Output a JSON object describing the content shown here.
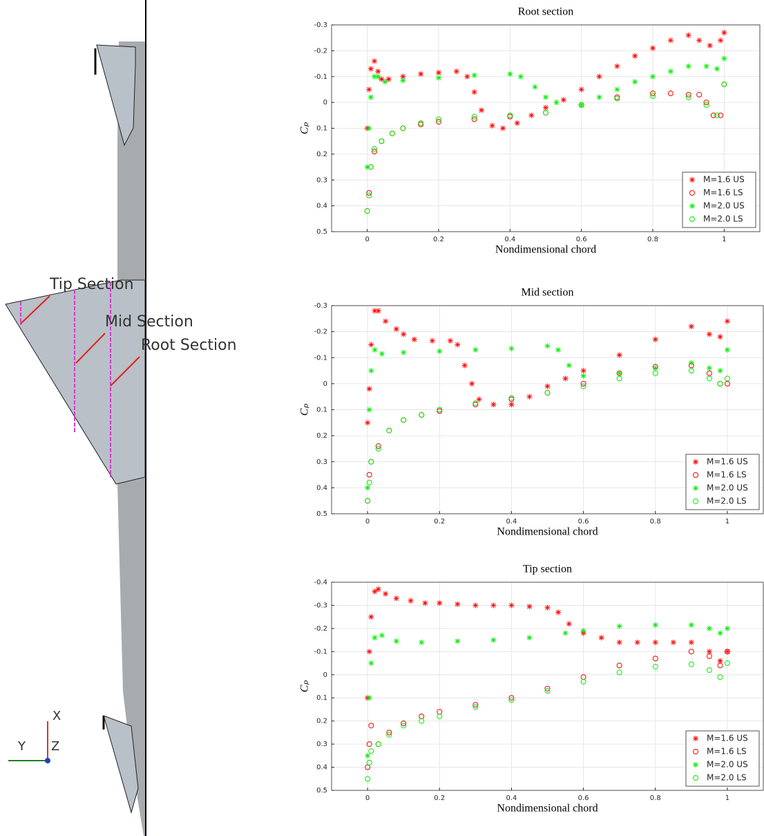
{
  "diagram": {
    "labels": [
      "Tip Section",
      "Mid Section",
      "Root Section"
    ],
    "axes": [
      "X",
      "Y",
      "Z"
    ]
  },
  "chart_data": [
    {
      "type": "scatter",
      "title": "Root section",
      "xlabel": "Nondimensional chord",
      "ylabel": "Cₚ",
      "xlim": [
        -0.1,
        1.1
      ],
      "xticks": [
        0,
        0.2,
        0.4,
        0.6,
        0.8,
        1
      ],
      "ylim": [
        -0.3,
        0.5
      ],
      "y_reversed": true,
      "yticks": [
        -0.3,
        -0.2,
        -0.1,
        0,
        0.1,
        0.2,
        0.3,
        0.4,
        0.5
      ],
      "grid": true,
      "legend_loc": "lower right",
      "series": [
        {
          "name": "M=1.6 US",
          "color": "#ff0000",
          "marker": "star",
          "x": [
            0,
            0.005,
            0.01,
            0.02,
            0.03,
            0.04,
            0.06,
            0.1,
            0.15,
            0.2,
            0.25,
            0.28,
            0.3,
            0.32,
            0.35,
            0.38,
            0.42,
            0.46,
            0.5,
            0.55,
            0.6,
            0.65,
            0.7,
            0.75,
            0.8,
            0.85,
            0.9,
            0.93,
            0.96,
            0.99,
            1.0
          ],
          "values": [
            0.1,
            -0.05,
            -0.13,
            -0.16,
            -0.12,
            -0.09,
            -0.09,
            -0.1,
            -0.11,
            -0.115,
            -0.12,
            -0.1,
            -0.04,
            0.03,
            0.09,
            0.1,
            0.08,
            0.05,
            0.02,
            -0.01,
            -0.05,
            -0.1,
            -0.14,
            -0.18,
            -0.21,
            -0.24,
            -0.26,
            -0.24,
            -0.22,
            -0.24,
            -0.27
          ]
        },
        {
          "name": "M=1.6 LS",
          "color": "#ff0000",
          "marker": "circle",
          "x": [
            0,
            0.005,
            0.01,
            0.02,
            0.04,
            0.07,
            0.1,
            0.15,
            0.2,
            0.3,
            0.4,
            0.5,
            0.6,
            0.7,
            0.8,
            0.85,
            0.9,
            0.93,
            0.95,
            0.97,
            0.99,
            1.0
          ],
          "values": [
            0.42,
            0.35,
            0.25,
            0.19,
            0.15,
            0.12,
            0.1,
            0.085,
            0.075,
            0.065,
            0.055,
            0.04,
            0.01,
            -0.02,
            -0.035,
            -0.035,
            -0.03,
            -0.03,
            0.0,
            0.05,
            0.05,
            -0.07
          ]
        },
        {
          "name": "M=2.0 US",
          "color": "#00ee00",
          "marker": "star",
          "x": [
            0,
            0.005,
            0.01,
            0.02,
            0.03,
            0.05,
            0.1,
            0.2,
            0.3,
            0.4,
            0.43,
            0.47,
            0.5,
            0.53,
            0.6,
            0.65,
            0.7,
            0.75,
            0.8,
            0.85,
            0.9,
            0.95,
            0.98,
            1.0
          ],
          "values": [
            0.25,
            0.1,
            -0.02,
            -0.1,
            -0.1,
            -0.08,
            -0.085,
            -0.095,
            -0.105,
            -0.11,
            -0.1,
            -0.06,
            -0.02,
            0.0,
            0.01,
            -0.02,
            -0.05,
            -0.08,
            -0.1,
            -0.12,
            -0.14,
            -0.14,
            -0.13,
            -0.17
          ]
        },
        {
          "name": "M=2.0 LS",
          "color": "#00ee00",
          "marker": "circle",
          "x": [
            0,
            0.005,
            0.01,
            0.02,
            0.04,
            0.07,
            0.1,
            0.15,
            0.2,
            0.3,
            0.4,
            0.5,
            0.6,
            0.7,
            0.8,
            0.9,
            0.95,
            0.98,
            1.0
          ],
          "values": [
            0.42,
            0.36,
            0.25,
            0.18,
            0.15,
            0.12,
            0.1,
            0.08,
            0.065,
            0.055,
            0.05,
            0.04,
            0.01,
            -0.015,
            -0.025,
            -0.02,
            0.01,
            0.05,
            -0.07
          ]
        }
      ]
    },
    {
      "type": "scatter",
      "title": "Mid section",
      "xlabel": "Nondimensional chord",
      "ylabel": "Cₚ",
      "xlim": [
        -0.1,
        1.1
      ],
      "xticks": [
        0,
        0.2,
        0.4,
        0.6,
        0.8,
        1
      ],
      "ylim": [
        -0.3,
        0.5
      ],
      "y_reversed": true,
      "yticks": [
        -0.3,
        -0.2,
        -0.1,
        0,
        0.1,
        0.2,
        0.3,
        0.4,
        0.5
      ],
      "grid": true,
      "legend_loc": "lower right",
      "series": [
        {
          "name": "M=1.6 US",
          "color": "#ff0000",
          "marker": "star",
          "x": [
            0,
            0.005,
            0.01,
            0.02,
            0.03,
            0.05,
            0.08,
            0.1,
            0.13,
            0.18,
            0.23,
            0.25,
            0.27,
            0.29,
            0.31,
            0.35,
            0.4,
            0.45,
            0.5,
            0.55,
            0.6,
            0.7,
            0.8,
            0.9,
            0.95,
            0.98,
            1.0
          ],
          "values": [
            0.15,
            0.02,
            -0.15,
            -0.28,
            -0.28,
            -0.24,
            -0.21,
            -0.19,
            -0.17,
            -0.165,
            -0.165,
            -0.15,
            -0.07,
            0.0,
            0.06,
            0.08,
            0.08,
            0.05,
            0.01,
            -0.02,
            -0.05,
            -0.11,
            -0.17,
            -0.22,
            -0.19,
            -0.18,
            -0.24
          ]
        },
        {
          "name": "M=1.6 LS",
          "color": "#ff0000",
          "marker": "circle",
          "x": [
            0,
            0.005,
            0.01,
            0.03,
            0.06,
            0.1,
            0.15,
            0.2,
            0.3,
            0.4,
            0.5,
            0.6,
            0.7,
            0.8,
            0.9,
            0.95,
            0.98,
            1.0
          ],
          "values": [
            0.45,
            0.35,
            0.3,
            0.24,
            0.18,
            0.14,
            0.12,
            0.105,
            0.08,
            0.06,
            0.035,
            0.0,
            -0.04,
            -0.065,
            -0.07,
            -0.04,
            0.0,
            0.0
          ]
        },
        {
          "name": "M=2.0 US",
          "color": "#00ee00",
          "marker": "star",
          "x": [
            0,
            0.005,
            0.01,
            0.02,
            0.04,
            0.1,
            0.2,
            0.3,
            0.4,
            0.5,
            0.53,
            0.56,
            0.6,
            0.7,
            0.8,
            0.9,
            0.95,
            0.98,
            1.0
          ],
          "values": [
            0.4,
            0.1,
            -0.05,
            -0.13,
            -0.115,
            -0.12,
            -0.125,
            -0.13,
            -0.135,
            -0.145,
            -0.13,
            -0.07,
            -0.03,
            -0.04,
            -0.06,
            -0.08,
            -0.06,
            -0.05,
            -0.13
          ]
        },
        {
          "name": "M=2.0 LS",
          "color": "#00ee00",
          "marker": "circle",
          "x": [
            0,
            0.005,
            0.01,
            0.03,
            0.06,
            0.1,
            0.15,
            0.2,
            0.3,
            0.4,
            0.5,
            0.6,
            0.7,
            0.8,
            0.9,
            0.95,
            0.98,
            1.0
          ],
          "values": [
            0.45,
            0.38,
            0.3,
            0.25,
            0.18,
            0.14,
            0.12,
            0.1,
            0.075,
            0.055,
            0.035,
            0.01,
            -0.02,
            -0.04,
            -0.05,
            -0.02,
            0.0,
            -0.02
          ]
        }
      ]
    },
    {
      "type": "scatter",
      "title": "Tip section",
      "xlabel": "Nondimensional chord",
      "ylabel": "Cₚ",
      "xlim": [
        -0.1,
        1.1
      ],
      "xticks": [
        0,
        0.2,
        0.4,
        0.6,
        0.8,
        1
      ],
      "ylim": [
        -0.4,
        0.5
      ],
      "y_reversed": true,
      "yticks": [
        -0.4,
        -0.3,
        -0.2,
        -0.1,
        0,
        0.1,
        0.2,
        0.3,
        0.4,
        0.5
      ],
      "grid": true,
      "legend_loc": "lower right",
      "series": [
        {
          "name": "M=1.6 US",
          "color": "#ff0000",
          "marker": "star",
          "x": [
            0,
            0.005,
            0.01,
            0.02,
            0.03,
            0.05,
            0.08,
            0.12,
            0.16,
            0.2,
            0.25,
            0.3,
            0.35,
            0.4,
            0.45,
            0.5,
            0.53,
            0.56,
            0.6,
            0.65,
            0.7,
            0.75,
            0.8,
            0.85,
            0.9,
            0.95,
            0.98,
            1.0
          ],
          "values": [
            0.1,
            -0.1,
            -0.25,
            -0.36,
            -0.37,
            -0.35,
            -0.33,
            -0.32,
            -0.31,
            -0.31,
            -0.305,
            -0.3,
            -0.3,
            -0.3,
            -0.295,
            -0.29,
            -0.27,
            -0.22,
            -0.18,
            -0.16,
            -0.14,
            -0.14,
            -0.14,
            -0.14,
            -0.14,
            -0.1,
            -0.06,
            -0.1
          ]
        },
        {
          "name": "M=1.6 LS",
          "color": "#ff0000",
          "marker": "circle",
          "x": [
            0,
            0.005,
            0.01,
            0.03,
            0.06,
            0.1,
            0.15,
            0.2,
            0.3,
            0.4,
            0.5,
            0.6,
            0.7,
            0.8,
            0.9,
            0.95,
            0.98,
            1.0
          ],
          "values": [
            0.4,
            0.3,
            0.22,
            0.3,
            0.25,
            0.21,
            0.18,
            0.16,
            0.13,
            0.1,
            0.06,
            0.01,
            -0.04,
            -0.07,
            -0.1,
            -0.08,
            -0.04,
            -0.1
          ]
        },
        {
          "name": "M=2.0 US",
          "color": "#00ee00",
          "marker": "star",
          "x": [
            0,
            0.005,
            0.01,
            0.02,
            0.04,
            0.08,
            0.15,
            0.25,
            0.35,
            0.45,
            0.55,
            0.6,
            0.7,
            0.8,
            0.9,
            0.95,
            0.98,
            1.0
          ],
          "values": [
            0.35,
            0.1,
            -0.05,
            -0.16,
            -0.17,
            -0.145,
            -0.14,
            -0.145,
            -0.15,
            -0.16,
            -0.18,
            -0.19,
            -0.21,
            -0.215,
            -0.215,
            -0.2,
            -0.18,
            -0.2
          ]
        },
        {
          "name": "M=2.0 LS",
          "color": "#00ee00",
          "marker": "circle",
          "x": [
            0,
            0.005,
            0.01,
            0.03,
            0.06,
            0.1,
            0.15,
            0.2,
            0.3,
            0.4,
            0.5,
            0.6,
            0.7,
            0.8,
            0.9,
            0.95,
            0.98,
            1.0
          ],
          "values": [
            0.45,
            0.38,
            0.33,
            0.3,
            0.26,
            0.22,
            0.2,
            0.18,
            0.14,
            0.11,
            0.07,
            0.03,
            -0.01,
            -0.035,
            -0.045,
            -0.02,
            0.01,
            -0.05
          ]
        }
      ]
    }
  ]
}
